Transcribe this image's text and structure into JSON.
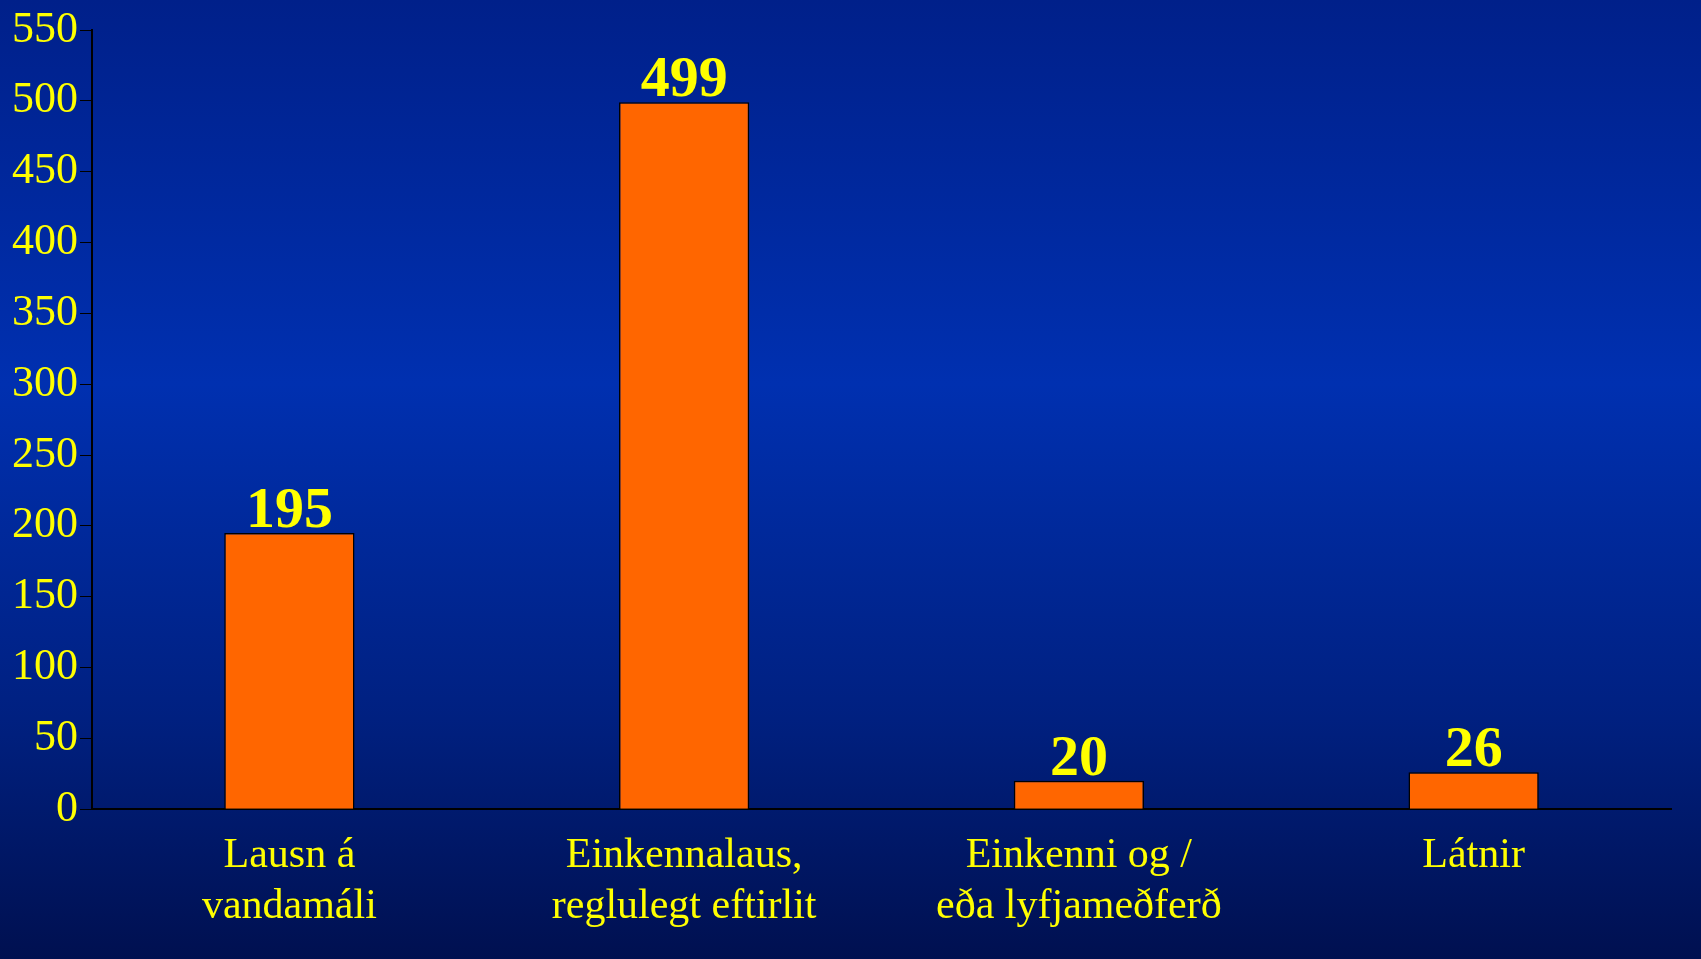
{
  "chart_data": {
    "type": "bar",
    "categories": [
      "Lausn á\nvandamáli",
      "Einkennalaus,\nreglulegt eftirlit",
      "Einkenni og /\neða lyfjameðferð",
      "Látnir"
    ],
    "values": [
      195,
      499,
      20,
      26
    ],
    "color": "#ff6600",
    "ylim": [
      0,
      550
    ],
    "yticks": [
      0,
      50,
      100,
      150,
      200,
      250,
      300,
      350,
      400,
      450,
      500,
      550
    ],
    "grid": false,
    "legend": false,
    "data_labels": true
  }
}
